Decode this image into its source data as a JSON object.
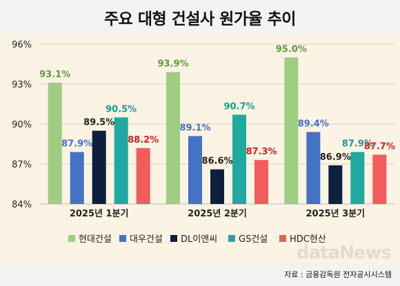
{
  "chart_data": {
    "type": "bar",
    "title": "주요 대형 건설사 원가율 추이",
    "categories": [
      "2025년 1분기",
      "2025년 2분기",
      "2025년 3분기"
    ],
    "series": [
      {
        "name": "현대건설",
        "color": "#9fce83",
        "label_color": "#5f9a3e",
        "values": [
          93.1,
          93.9,
          95.0
        ],
        "labels": [
          "93.1%",
          "93.9%",
          "95.0%"
        ]
      },
      {
        "name": "대우건설",
        "color": "#4472c4",
        "label_color": "#4472c4",
        "values": [
          87.9,
          89.1,
          89.4
        ],
        "labels": [
          "87.9%",
          "89.1%",
          "89.4%"
        ]
      },
      {
        "name": "DL이앤씨",
        "color": "#0e1f3d",
        "label_color": "#222222",
        "values": [
          89.5,
          86.6,
          86.9
        ],
        "labels": [
          "89.5%",
          "86.6%",
          "86.9%"
        ]
      },
      {
        "name": "GS건설",
        "color": "#1fa9a0",
        "label_color": "#1a9a92",
        "values": [
          90.5,
          90.7,
          87.9
        ],
        "labels": [
          "90.5%",
          "90.7%",
          "87.9%"
        ]
      },
      {
        "name": "HDC현산",
        "color": "#f25c5c",
        "label_color": "#d42020",
        "values": [
          88.2,
          87.3,
          87.7
        ],
        "labels": [
          "88.2%",
          "87.3%",
          "87.7%"
        ]
      }
    ],
    "ylim": [
      84,
      96
    ],
    "yticks": [
      84,
      87,
      90,
      93,
      96
    ],
    "ytick_labels": [
      "84%",
      "87%",
      "90%",
      "93%",
      "96%"
    ],
    "grid": true,
    "legend": "bottom"
  },
  "source": "자료 : 금융감독원 전자공시시스템",
  "watermark": "dataNews"
}
